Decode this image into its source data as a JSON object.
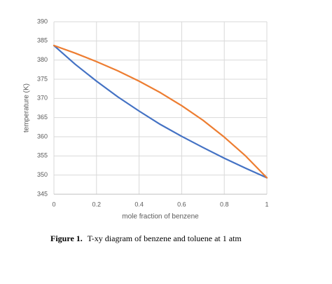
{
  "chart_data": {
    "type": "line",
    "x_label": "mole fraction of benzene",
    "y_label": "temperature (K)",
    "x": [
      0,
      0.1,
      0.2,
      0.3,
      0.4,
      0.5,
      0.6,
      0.7,
      0.8,
      0.9,
      1
    ],
    "series": [
      {
        "color": "#4472c4",
        "values": [
          383.8,
          378.9,
          374.5,
          370.4,
          366.7,
          363.2,
          360.1,
          357.2,
          354.4,
          351.8,
          349.3
        ]
      },
      {
        "color": "#ed7d31",
        "values": [
          383.8,
          381.8,
          379.6,
          377.2,
          374.5,
          371.5,
          368.1,
          364.3,
          359.9,
          355.0,
          349.3
        ]
      }
    ],
    "xlim": [
      0,
      1
    ],
    "xticks": [
      0,
      0.2,
      0.4,
      0.6,
      0.8,
      1
    ],
    "ylim": [
      345,
      390
    ],
    "yticks": [
      345,
      350,
      355,
      360,
      365,
      370,
      375,
      380,
      385,
      390
    ],
    "grid": true
  },
  "caption": {
    "label": "Figure 1.",
    "text": "T-xy diagram of benzene and toluene at 1 atm"
  }
}
